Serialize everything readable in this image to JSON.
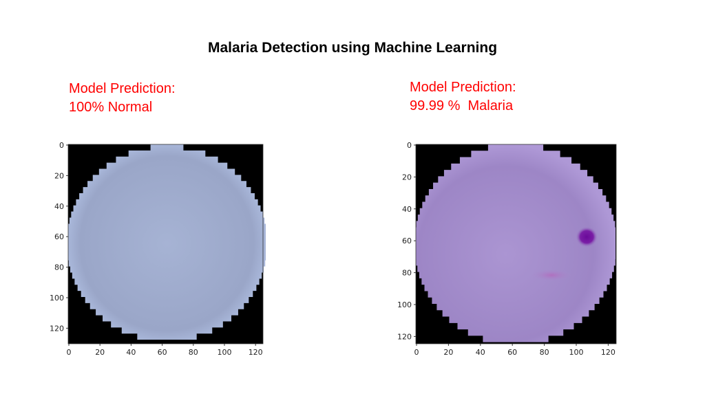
{
  "title": "Malaria Detection using Machine Learning",
  "panels": [
    {
      "prediction_label": "Model Prediction:",
      "prediction_value": "100% Normal",
      "xticks": [
        "0",
        "20",
        "40",
        "60",
        "80",
        "100",
        "120"
      ],
      "yticks": [
        "0",
        "20",
        "40",
        "60",
        "80",
        "100",
        "120"
      ],
      "cell_color": "#a3b0d0",
      "stain": false
    },
    {
      "prediction_label": "Model Prediction:",
      "prediction_value": "99.99 %  Malaria",
      "xticks": [
        "0",
        "20",
        "40",
        "60",
        "80",
        "100",
        "120"
      ],
      "yticks": [
        "0",
        "20",
        "40",
        "60",
        "80",
        "100",
        "120"
      ],
      "cell_color": "#a58ccc",
      "stain": true
    }
  ]
}
